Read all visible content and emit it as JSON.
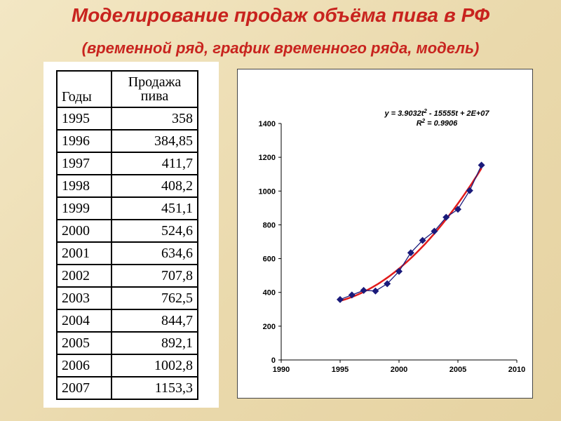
{
  "slide": {
    "title": "Моделирование продаж объёма  пива в РФ",
    "subtitle": "(временной ряд, график временного ряда, модель)"
  },
  "table": {
    "headers": {
      "years": "Годы",
      "sales_line1": "Продажа",
      "sales_line2": "пива"
    },
    "rows": [
      {
        "year": "1995",
        "sales": "358"
      },
      {
        "year": "1996",
        "sales": "384,85"
      },
      {
        "year": "1997",
        "sales": "411,7"
      },
      {
        "year": "1998",
        "sales": "408,2"
      },
      {
        "year": "1999",
        "sales": "451,1"
      },
      {
        "year": "2000",
        "sales": "524,6"
      },
      {
        "year": "2001",
        "sales": "634,6"
      },
      {
        "year": "2002",
        "sales": "707,8"
      },
      {
        "year": "2003",
        "sales": "762,5"
      },
      {
        "year": "2004",
        "sales": "844,7"
      },
      {
        "year": "2005",
        "sales": "892,1"
      },
      {
        "year": "2006",
        "sales": "1002,8"
      },
      {
        "year": "2007",
        "sales": "1153,3"
      }
    ]
  },
  "chart_data": {
    "type": "scatter",
    "x": [
      1995,
      1996,
      1997,
      1998,
      1999,
      2000,
      2001,
      2002,
      2003,
      2004,
      2005,
      2006,
      2007
    ],
    "y": [
      358,
      384.85,
      411.7,
      408.2,
      451.1,
      524.6,
      634.6,
      707.8,
      762.5,
      844.7,
      892.1,
      1002.8,
      1153.3
    ],
    "xlim": [
      1990,
      2010
    ],
    "ylim": [
      0,
      1400
    ],
    "xticks": [
      1990,
      1995,
      2000,
      2005,
      2010
    ],
    "yticks": [
      0,
      200,
      400,
      600,
      800,
      1000,
      1200,
      1400
    ],
    "grid": false,
    "legend": false,
    "trendline": {
      "type": "polynomial-2",
      "equation_prefix": "y = 3.9032t",
      "equation_exp": "2",
      "equation_suffix": " - 15555t + 2E+07",
      "r2_prefix": "R",
      "r2_exp": "2",
      "r2_suffix": " = 0.9906",
      "color": "#e01b1b"
    },
    "marker_color": "#1a1a7a"
  },
  "colors": {
    "title": "#c8231e",
    "background": "#efe0b8"
  }
}
